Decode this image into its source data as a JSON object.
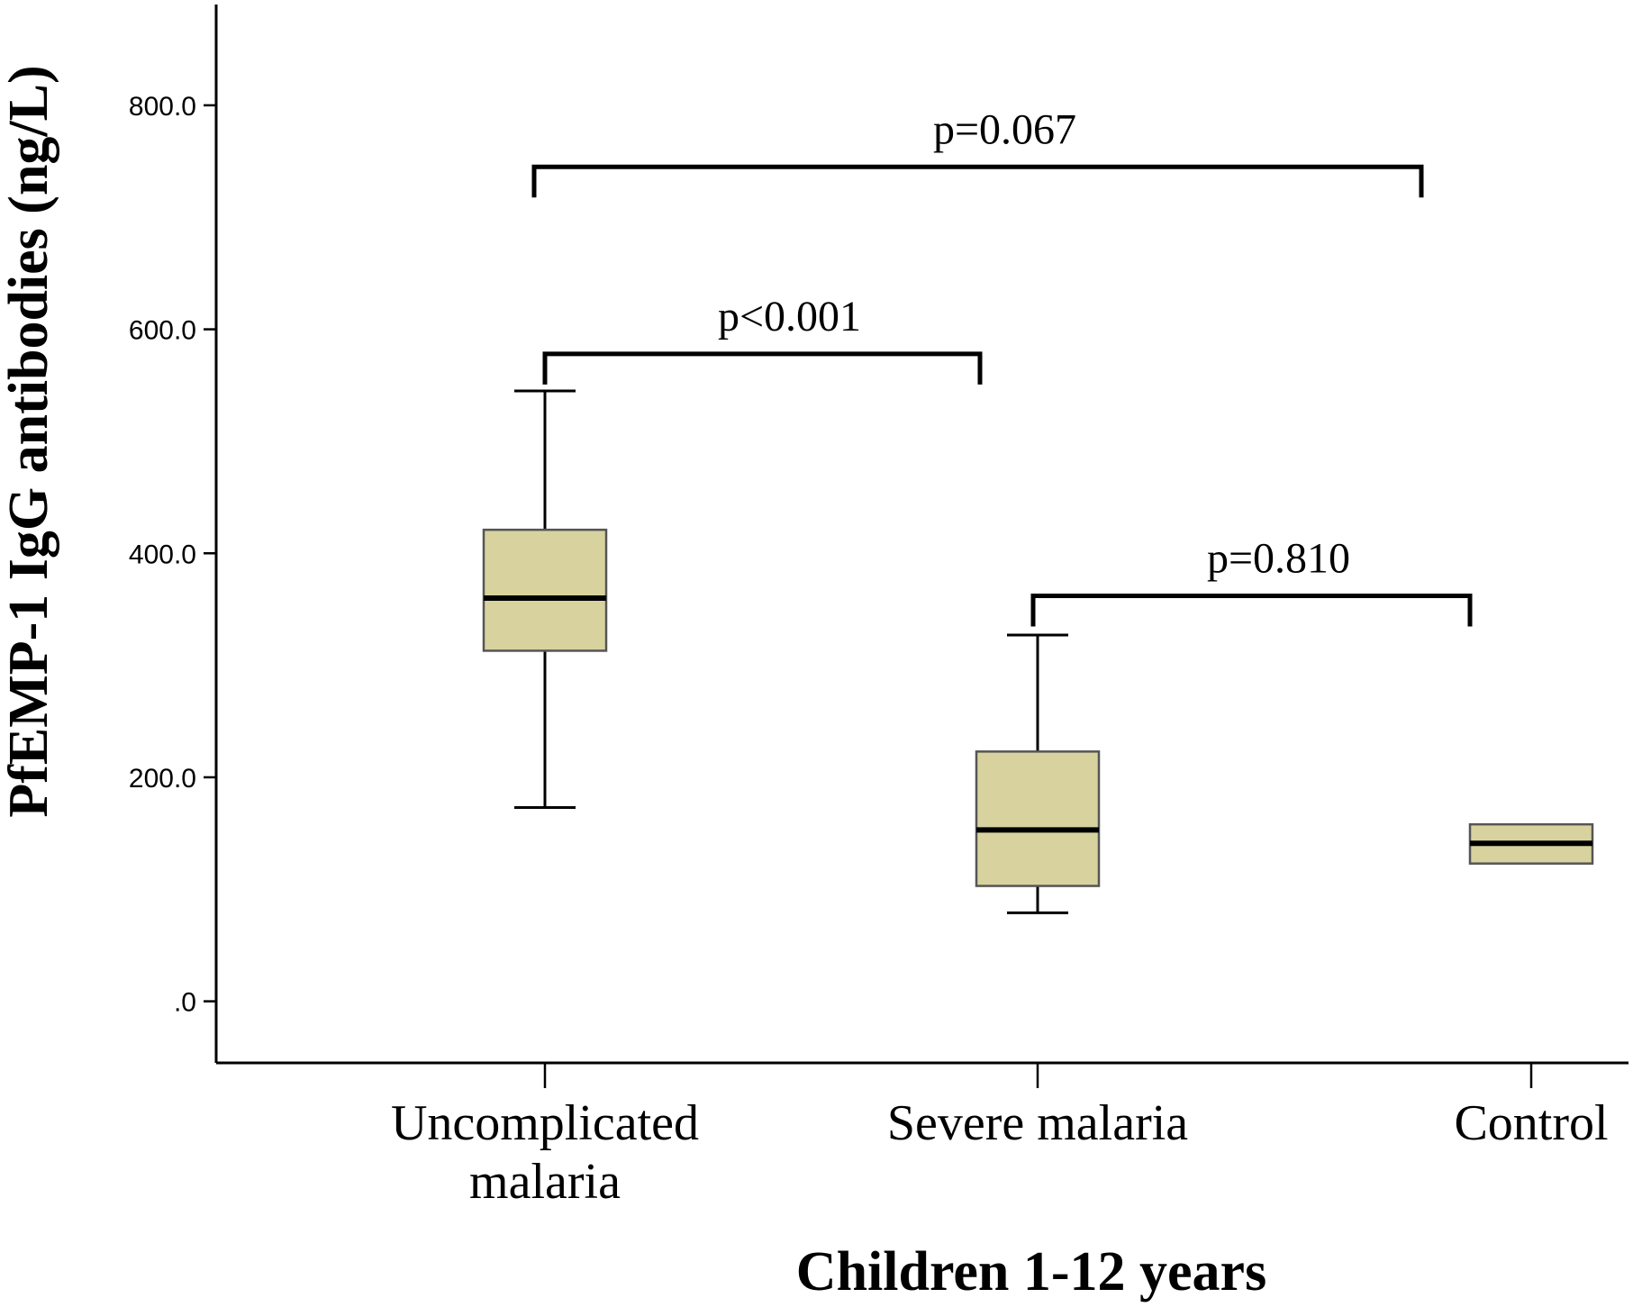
{
  "chart_data": {
    "type": "box",
    "xlabel": "Children 1-12 years",
    "ylabel": "PfEMP-1 IgG antibodies (ng/L)",
    "ylim": [
      -55,
      890
    ],
    "yticks": [
      0,
      200,
      400,
      600,
      800
    ],
    "ytick_labels": [
      ".0",
      "200.0",
      "400.0",
      "600.0",
      "800.0"
    ],
    "grid": false,
    "categories": [
      [
        "Uncomplicated",
        "malaria"
      ],
      [
        "Severe malaria"
      ],
      [
        "Control"
      ]
    ],
    "boxes": [
      {
        "whisker_low": 173,
        "q1": 313,
        "median": 360,
        "q3": 421,
        "whisker_high": 545
      },
      {
        "whisker_low": 79,
        "q1": 103,
        "median": 153,
        "q3": 223,
        "whisker_high": 327
      },
      {
        "whisker_low": 123,
        "q1": 123,
        "median": 141,
        "q3": 158,
        "whisker_high": 158
      }
    ],
    "box_color": "#d8d39e",
    "comparisons": [
      {
        "from": 0,
        "to": 2,
        "y": 745,
        "label": "p=0.067"
      },
      {
        "from": 0,
        "to": 1,
        "y": 578,
        "label": "p<0.001"
      },
      {
        "from": 1,
        "to": 2,
        "y": 362,
        "label": "p=0.810"
      }
    ]
  }
}
